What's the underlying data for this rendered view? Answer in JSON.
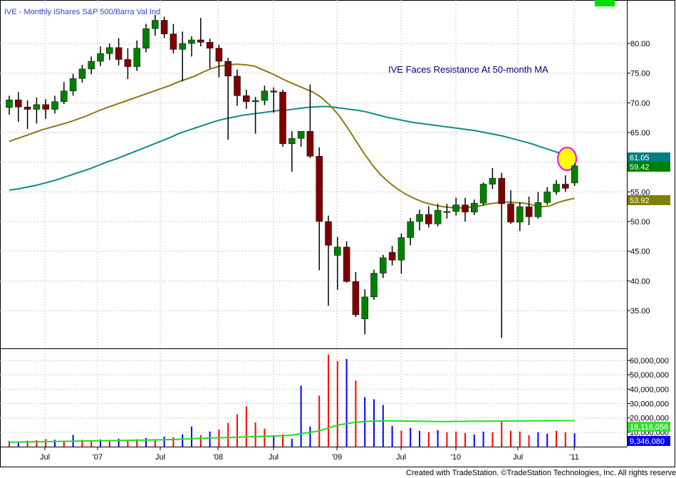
{
  "chart_data": {
    "type": "candlestick",
    "title": "IVE - Monthly  iShares S&P 500/Barra Val Ind",
    "annotation": "IVE Faces Resistance At 50-month MA",
    "x_tick_labels": [
      "Jul",
      "'07",
      "Jul",
      "'08",
      "Jul",
      "'09",
      "Jul",
      "'10",
      "Jul",
      "'11"
    ],
    "price_axis": {
      "ylim": [
        30,
        85
      ],
      "ticks": [
        "35.00",
        "40.00",
        "45.00",
        "50.00",
        "55.00",
        "60.00",
        "65.00",
        "70.00",
        "75.00",
        "80.00"
      ]
    },
    "volume_axis": {
      "ylim": [
        0,
        65000000
      ],
      "ticks": [
        "10,000,000",
        "20,000,000",
        "30,000,000",
        "40,000,000",
        "50,000,000",
        "60,000,000"
      ]
    },
    "last_value_flags": [
      {
        "label": "61.05",
        "value": 61.05,
        "color": "#008080"
      },
      {
        "label": "59.42",
        "value": 59.42,
        "color": "#008000"
      },
      {
        "label": "53.92",
        "value": 53.92,
        "color": "#808000"
      }
    ],
    "volume_flags": [
      {
        "label": "18,116,056",
        "value": 18116056,
        "color": "#33dd33"
      },
      {
        "label": "9,346,080",
        "value": 9346080,
        "color": "#0000ff"
      }
    ],
    "candles": [
      {
        "o": 69.2,
        "h": 71.2,
        "l": 68.0,
        "c": 70.5
      },
      {
        "o": 70.5,
        "h": 71.8,
        "l": 66.8,
        "c": 69.3
      },
      {
        "o": 69.3,
        "h": 70.4,
        "l": 65.6,
        "c": 68.9
      },
      {
        "o": 68.9,
        "h": 70.9,
        "l": 66.5,
        "c": 69.7
      },
      {
        "o": 69.7,
        "h": 70.6,
        "l": 67.3,
        "c": 68.9
      },
      {
        "o": 68.9,
        "h": 71.2,
        "l": 68.2,
        "c": 70.2
      },
      {
        "o": 70.2,
        "h": 73.5,
        "l": 69.8,
        "c": 72.0
      },
      {
        "o": 72.0,
        "h": 74.9,
        "l": 71.2,
        "c": 74.1
      },
      {
        "o": 74.1,
        "h": 76.4,
        "l": 73.4,
        "c": 75.7
      },
      {
        "o": 75.7,
        "h": 77.8,
        "l": 74.8,
        "c": 77.0
      },
      {
        "o": 77.0,
        "h": 79.5,
        "l": 76.2,
        "c": 78.3
      },
      {
        "o": 78.3,
        "h": 80.0,
        "l": 77.2,
        "c": 79.3
      },
      {
        "o": 79.3,
        "h": 80.9,
        "l": 76.3,
        "c": 77.3
      },
      {
        "o": 77.3,
        "h": 79.2,
        "l": 74.0,
        "c": 76.1
      },
      {
        "o": 76.1,
        "h": 80.5,
        "l": 75.4,
        "c": 79.2
      },
      {
        "o": 79.2,
        "h": 83.3,
        "l": 78.5,
        "c": 82.5
      },
      {
        "o": 82.5,
        "h": 84.8,
        "l": 81.3,
        "c": 83.9
      },
      {
        "o": 83.9,
        "h": 84.5,
        "l": 80.9,
        "c": 81.6
      },
      {
        "o": 81.6,
        "h": 83.3,
        "l": 78.3,
        "c": 79.0
      },
      {
        "o": 79.0,
        "h": 82.0,
        "l": 73.6,
        "c": 80.0
      },
      {
        "o": 80.0,
        "h": 81.2,
        "l": 77.8,
        "c": 80.6
      },
      {
        "o": 80.6,
        "h": 84.3,
        "l": 79.5,
        "c": 80.2
      },
      {
        "o": 80.2,
        "h": 80.8,
        "l": 75.8,
        "c": 79.2
      },
      {
        "o": 79.2,
        "h": 79.8,
        "l": 74.3,
        "c": 77.0
      },
      {
        "o": 77.0,
        "h": 77.6,
        "l": 63.8,
        "c": 74.5
      },
      {
        "o": 74.5,
        "h": 75.6,
        "l": 69.5,
        "c": 71.2
      },
      {
        "o": 71.2,
        "h": 72.2,
        "l": 69.0,
        "c": 70.2
      },
      {
        "o": 70.2,
        "h": 71.0,
        "l": 64.8,
        "c": 70.4
      },
      {
        "o": 70.4,
        "h": 72.9,
        "l": 69.6,
        "c": 72.0
      },
      {
        "o": 72.0,
        "h": 72.6,
        "l": 68.3,
        "c": 71.8
      },
      {
        "o": 71.8,
        "h": 72.2,
        "l": 62.6,
        "c": 63.1
      },
      {
        "o": 63.1,
        "h": 65.2,
        "l": 58.4,
        "c": 64.0
      },
      {
        "o": 64.0,
        "h": 65.2,
        "l": 62.6,
        "c": 65.2
      },
      {
        "o": 65.2,
        "h": 73.1,
        "l": 60.7,
        "c": 61.0
      },
      {
        "o": 61.0,
        "h": 62.5,
        "l": 41.8,
        "c": 50.0
      },
      {
        "o": 50.0,
        "h": 51.0,
        "l": 35.8,
        "c": 46.0
      },
      {
        "o": 44.3,
        "h": 47.4,
        "l": 38.5,
        "c": 45.7
      },
      {
        "o": 45.7,
        "h": 46.7,
        "l": 39.7,
        "c": 39.9
      },
      {
        "o": 39.9,
        "h": 41.5,
        "l": 33.9,
        "c": 34.3
      },
      {
        "o": 33.6,
        "h": 38.6,
        "l": 31.0,
        "c": 37.3
      },
      {
        "o": 37.3,
        "h": 41.9,
        "l": 36.8,
        "c": 41.3
      },
      {
        "o": 41.3,
        "h": 44.4,
        "l": 40.5,
        "c": 43.9
      },
      {
        "o": 44.8,
        "h": 45.9,
        "l": 42.6,
        "c": 43.5
      },
      {
        "o": 43.5,
        "h": 48.0,
        "l": 41.2,
        "c": 47.3
      },
      {
        "o": 47.3,
        "h": 50.6,
        "l": 46.0,
        "c": 50.0
      },
      {
        "o": 50.0,
        "h": 52.0,
        "l": 48.5,
        "c": 51.2
      },
      {
        "o": 51.2,
        "h": 52.6,
        "l": 49.0,
        "c": 49.6
      },
      {
        "o": 49.6,
        "h": 53.0,
        "l": 49.2,
        "c": 51.9
      },
      {
        "o": 51.6,
        "h": 53.0,
        "l": 50.5,
        "c": 51.7
      },
      {
        "o": 51.7,
        "h": 54.0,
        "l": 51.0,
        "c": 52.8
      },
      {
        "o": 52.8,
        "h": 54.0,
        "l": 50.0,
        "c": 51.6
      },
      {
        "o": 51.6,
        "h": 53.7,
        "l": 51.1,
        "c": 53.1
      },
      {
        "o": 53.1,
        "h": 56.6,
        "l": 52.7,
        "c": 56.3
      },
      {
        "o": 56.3,
        "h": 59.0,
        "l": 55.5,
        "c": 57.3
      },
      {
        "o": 57.3,
        "h": 58.2,
        "l": 30.4,
        "c": 53.0
      },
      {
        "o": 53.0,
        "h": 55.3,
        "l": 49.6,
        "c": 49.9
      },
      {
        "o": 49.9,
        "h": 53.3,
        "l": 48.4,
        "c": 52.5
      },
      {
        "o": 52.5,
        "h": 54.2,
        "l": 49.4,
        "c": 50.8
      },
      {
        "o": 50.8,
        "h": 55.0,
        "l": 50.5,
        "c": 53.2
      },
      {
        "o": 53.2,
        "h": 55.8,
        "l": 52.8,
        "c": 55.0
      },
      {
        "o": 55.0,
        "h": 57.0,
        "l": 54.5,
        "c": 56.3
      },
      {
        "o": 56.3,
        "h": 57.8,
        "l": 55.0,
        "c": 55.6
      },
      {
        "o": 56.5,
        "h": 59.8,
        "l": 56.0,
        "c": 59.4
      }
    ],
    "volume": [
      {
        "v": 4000000,
        "up": false
      },
      {
        "v": 3000000,
        "up": true
      },
      {
        "v": 4200000,
        "up": false
      },
      {
        "v": 4500000,
        "up": false
      },
      {
        "v": 5200000,
        "up": false
      },
      {
        "v": 4800000,
        "up": true
      },
      {
        "v": 4000000,
        "up": false
      },
      {
        "v": 8200000,
        "up": true
      },
      {
        "v": 4800000,
        "up": false
      },
      {
        "v": 4000000,
        "up": false
      },
      {
        "v": 5000000,
        "up": true
      },
      {
        "v": 3800000,
        "up": false
      },
      {
        "v": 5500000,
        "up": true
      },
      {
        "v": 4600000,
        "up": false
      },
      {
        "v": 5200000,
        "up": false
      },
      {
        "v": 6000000,
        "up": true
      },
      {
        "v": 4800000,
        "up": false
      },
      {
        "v": 7000000,
        "up": true
      },
      {
        "v": 6500000,
        "up": false
      },
      {
        "v": 8500000,
        "up": true
      },
      {
        "v": 14000000,
        "up": true
      },
      {
        "v": 8000000,
        "up": false
      },
      {
        "v": 10500000,
        "up": true
      },
      {
        "v": 12000000,
        "up": false
      },
      {
        "v": 16500000,
        "up": false
      },
      {
        "v": 22500000,
        "up": false
      },
      {
        "v": 28000000,
        "up": false
      },
      {
        "v": 17000000,
        "up": false
      },
      {
        "v": 12500000,
        "up": false
      },
      {
        "v": 8000000,
        "up": true
      },
      {
        "v": 8500000,
        "up": false
      },
      {
        "v": 5500000,
        "up": true
      },
      {
        "v": 42500000,
        "up": true
      },
      {
        "v": 14000000,
        "up": true
      },
      {
        "v": 35500000,
        "up": false
      },
      {
        "v": 64000000,
        "up": false
      },
      {
        "v": 59500000,
        "up": false
      },
      {
        "v": 61000000,
        "up": true
      },
      {
        "v": 46000000,
        "up": false
      },
      {
        "v": 34500000,
        "up": true
      },
      {
        "v": 33000000,
        "up": true
      },
      {
        "v": 29000000,
        "up": true
      },
      {
        "v": 14500000,
        "up": true
      },
      {
        "v": 11000000,
        "up": false
      },
      {
        "v": 13000000,
        "up": true
      },
      {
        "v": 11000000,
        "up": true
      },
      {
        "v": 10000000,
        "up": false
      },
      {
        "v": 11500000,
        "up": true
      },
      {
        "v": 10000000,
        "up": false
      },
      {
        "v": 10500000,
        "up": false
      },
      {
        "v": 9500000,
        "up": false
      },
      {
        "v": 8500000,
        "up": true
      },
      {
        "v": 10500000,
        "up": true
      },
      {
        "v": 10000000,
        "up": false
      },
      {
        "v": 17500000,
        "up": false
      },
      {
        "v": 11000000,
        "up": false
      },
      {
        "v": 10500000,
        "up": false
      },
      {
        "v": 8000000,
        "up": false
      },
      {
        "v": 10000000,
        "up": true
      },
      {
        "v": 9000000,
        "up": true
      },
      {
        "v": 11000000,
        "up": false
      },
      {
        "v": 10000000,
        "up": false
      },
      {
        "v": 9346080,
        "up": true
      }
    ],
    "ma_short": [
      63.5,
      64.0,
      64.5,
      65.0,
      65.5,
      65.9,
      66.3,
      66.7,
      67.2,
      67.7,
      68.3,
      68.9,
      69.4,
      69.9,
      70.4,
      70.9,
      71.4,
      71.9,
      72.4,
      72.9,
      73.5,
      74.0,
      74.5,
      75.2,
      75.8,
      76.2,
      76.4,
      76.5,
      76.4,
      76.2,
      75.6,
      75.0,
      74.3,
      73.6,
      73.0,
      72.4,
      71.8,
      70.9,
      69.6,
      68.0,
      66.0,
      63.8,
      61.6,
      59.6,
      57.9,
      56.6,
      55.5,
      54.6,
      53.9,
      53.3,
      52.9,
      52.6,
      52.4,
      52.3,
      52.3,
      52.5,
      52.7,
      53.0,
      53.2,
      53.3,
      53.2,
      53.1,
      52.8,
      52.5,
      52.6,
      53.2,
      53.6,
      53.92
    ],
    "ma_long": [
      55.3,
      55.5,
      55.8,
      56.1,
      56.5,
      56.9,
      57.4,
      57.9,
      58.4,
      58.9,
      59.5,
      60.1,
      60.6,
      61.2,
      61.8,
      62.4,
      63.0,
      63.6,
      64.2,
      64.9,
      65.4,
      65.9,
      66.4,
      66.9,
      67.3,
      67.6,
      67.9,
      68.1,
      68.3,
      68.5,
      68.7,
      68.8,
      69.0,
      69.2,
      69.3,
      69.4,
      69.3,
      69.1,
      68.9,
      68.7,
      68.4,
      68.0,
      67.6,
      67.3,
      67.0,
      66.7,
      66.5,
      66.3,
      66.1,
      65.9,
      65.7,
      65.5,
      65.3,
      65.0,
      64.7,
      64.4,
      64.0,
      63.6,
      63.2,
      62.7,
      62.2,
      61.7,
      61.3,
      61.05
    ],
    "ma_volume": [
      3000000,
      3200000,
      3300000,
      3400000,
      3500000,
      3600000,
      3700000,
      3800000,
      3900000,
      4000000,
      4100000,
      4200000,
      4300000,
      4400000,
      4500000,
      4600000,
      4700000,
      4800000,
      5000000,
      5200000,
      5500000,
      5800000,
      6000000,
      6200000,
      6400000,
      6600000,
      6800000,
      7000000,
      7200000,
      7400000,
      7600000,
      8000000,
      9000000,
      10000000,
      11000000,
      13000000,
      15000000,
      16000000,
      17000000,
      17500000,
      17800000,
      18000000,
      18000000,
      17900000,
      17800000,
      17700000,
      17600000,
      17500000,
      17500000,
      17600000,
      17600000,
      17700000,
      17700000,
      17800000,
      17800000,
      17900000,
      17900000,
      18000000,
      18000000,
      18050000,
      18080000,
      18100000,
      18116056
    ]
  },
  "footer": "Created with TradeStation. ©TradeStation Technologies, Inc. All rights reserved."
}
